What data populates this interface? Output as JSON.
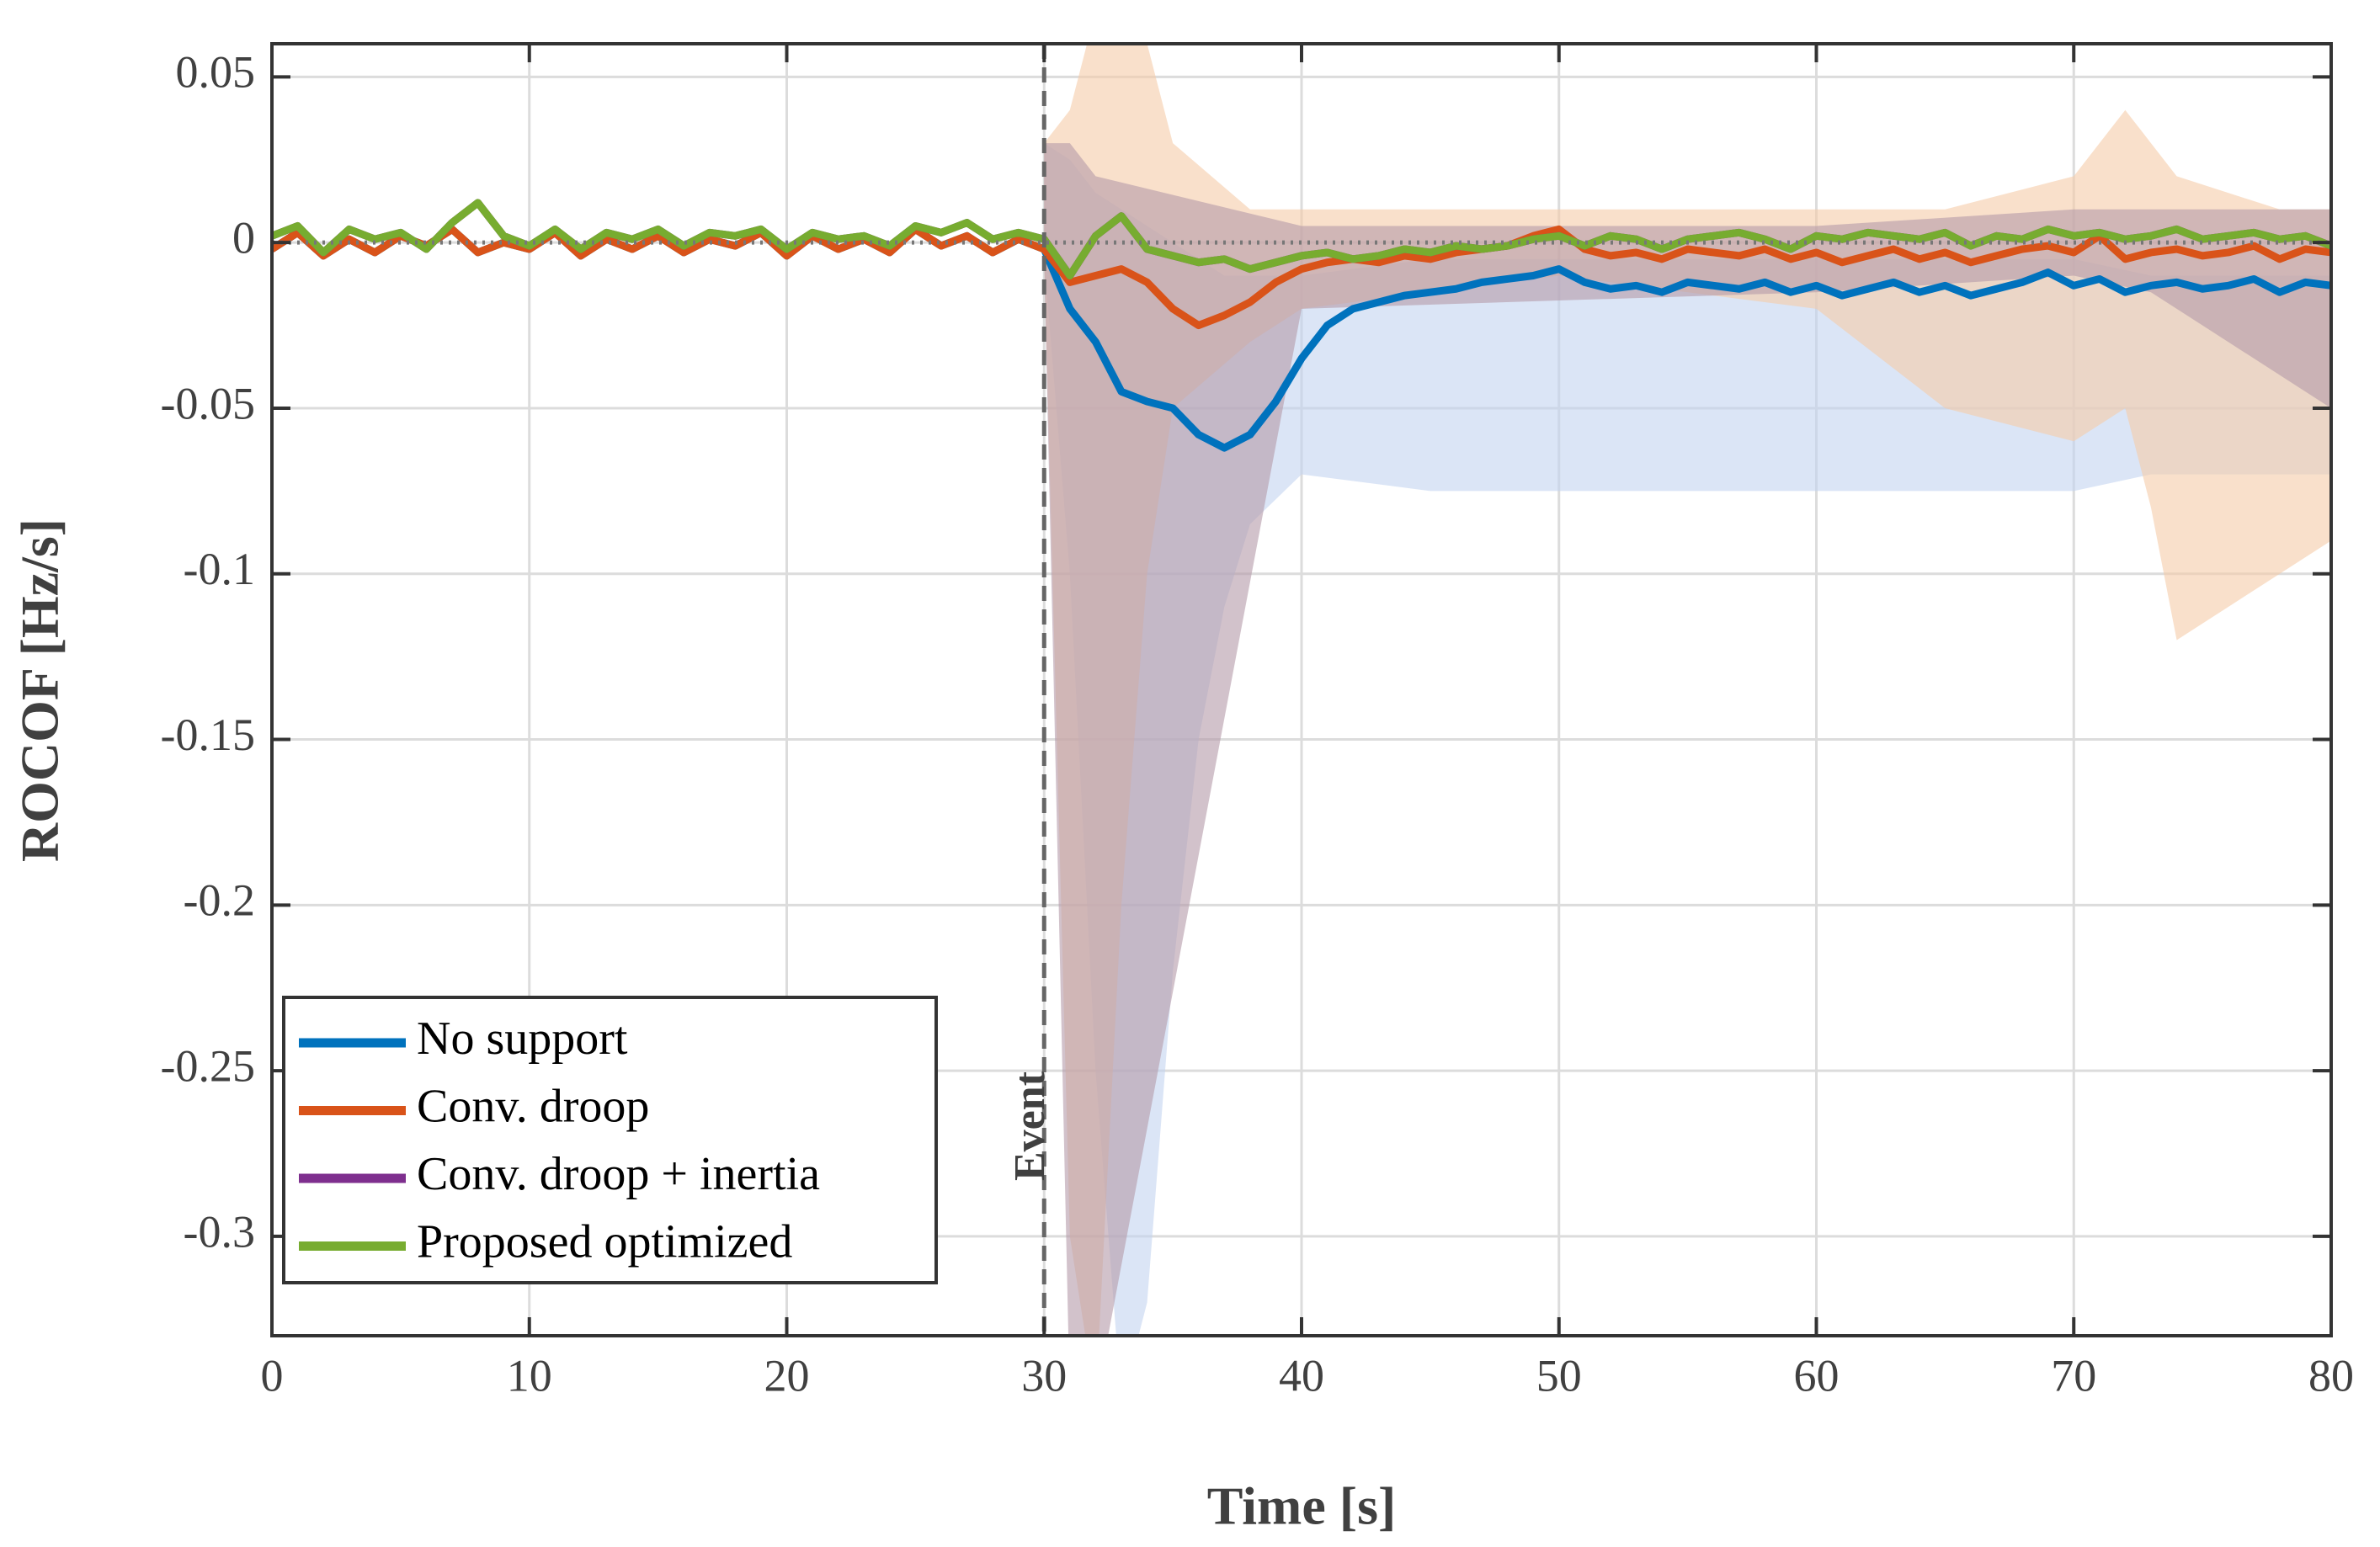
{
  "chart_data": {
    "type": "line",
    "xlabel": "Time [s]",
    "ylabel": "ROCOF [Hz/s]",
    "xlim": [
      0,
      80
    ],
    "xticks": [
      0,
      10,
      20,
      30,
      40,
      50,
      60,
      70,
      80
    ],
    "ylim": [
      -0.33,
      0.06
    ],
    "yticks": [
      0.05,
      0,
      -0.05,
      -0.1,
      -0.15,
      -0.2,
      -0.25,
      -0.3
    ],
    "grid": true,
    "legend": "lower left",
    "hline": 0,
    "event": {
      "x": 30,
      "label": "Event"
    },
    "x": [
      0,
      1,
      2,
      3,
      4,
      5,
      6,
      7,
      8,
      9,
      10,
      11,
      12,
      13,
      14,
      15,
      16,
      17,
      18,
      19,
      20,
      21,
      22,
      23,
      24,
      25,
      26,
      27,
      28,
      29,
      30,
      31,
      32,
      33,
      34,
      35,
      36,
      37,
      38,
      39,
      40,
      41,
      42,
      43,
      44,
      45,
      46,
      47,
      48,
      49,
      50,
      51,
      52,
      53,
      54,
      55,
      56,
      57,
      58,
      59,
      60,
      61,
      62,
      63,
      64,
      65,
      66,
      67,
      68,
      69,
      70,
      71,
      72,
      73,
      74,
      75,
      76,
      77,
      78,
      79,
      80
    ],
    "series": [
      {
        "name": "No support",
        "color": "#0072bd",
        "values": [
          -0.002,
          0.003,
          -0.004,
          0.001,
          -0.003,
          0.002,
          -0.001,
          0.004,
          -0.003,
          0,
          -0.002,
          0.003,
          -0.004,
          0.001,
          -0.002,
          0.002,
          -0.003,
          0.001,
          -0.001,
          0.003,
          -0.004,
          0.002,
          -0.002,
          0.001,
          -0.003,
          0.004,
          -0.001,
          0.002,
          -0.003,
          0.001,
          -0.002,
          -0.02,
          -0.03,
          -0.045,
          -0.048,
          -0.05,
          -0.058,
          -0.062,
          -0.058,
          -0.048,
          -0.035,
          -0.025,
          -0.02,
          -0.018,
          -0.016,
          -0.015,
          -0.014,
          -0.012,
          -0.011,
          -0.01,
          -0.008,
          -0.012,
          -0.014,
          -0.013,
          -0.015,
          -0.012,
          -0.013,
          -0.014,
          -0.012,
          -0.015,
          -0.013,
          -0.016,
          -0.014,
          -0.012,
          -0.015,
          -0.013,
          -0.016,
          -0.014,
          -0.012,
          -0.009,
          -0.013,
          -0.011,
          -0.015,
          -0.013,
          -0.012,
          -0.014,
          -0.013,
          -0.011,
          -0.015,
          -0.012,
          -0.013
        ]
      },
      {
        "name": "Conv. droop",
        "color": "#d95319",
        "values": [
          -0.002,
          0.003,
          -0.004,
          0.001,
          -0.003,
          0.002,
          -0.001,
          0.004,
          -0.003,
          0,
          -0.002,
          0.003,
          -0.004,
          0.001,
          -0.002,
          0.002,
          -0.003,
          0.001,
          -0.001,
          0.003,
          -0.004,
          0.002,
          -0.002,
          0.001,
          -0.003,
          0.004,
          -0.001,
          0.002,
          -0.003,
          0.001,
          -0.002,
          -0.012,
          -0.01,
          -0.008,
          -0.012,
          -0.02,
          -0.025,
          -0.022,
          -0.018,
          -0.012,
          -0.008,
          -0.006,
          -0.005,
          -0.006,
          -0.004,
          -0.005,
          -0.003,
          -0.002,
          -0.001,
          0.002,
          0.004,
          -0.002,
          -0.004,
          -0.003,
          -0.005,
          -0.002,
          -0.003,
          -0.004,
          -0.002,
          -0.005,
          -0.003,
          -0.006,
          -0.004,
          -0.002,
          -0.005,
          -0.003,
          -0.006,
          -0.004,
          -0.002,
          -0.001,
          -0.003,
          0.002,
          -0.005,
          -0.003,
          -0.002,
          -0.004,
          -0.003,
          -0.001,
          -0.005,
          -0.002,
          -0.003
        ]
      },
      {
        "name": "Conv. droop + inertia",
        "color": "#7e2f8e",
        "values": [
          0.002,
          0.005,
          -0.003,
          0.004,
          0.001,
          0.003,
          -0.002,
          0.006,
          0.012,
          0.002,
          -0.001,
          0.004,
          -0.002,
          0.003,
          0.001,
          0.004,
          -0.001,
          0.003,
          0.002,
          0.004,
          -0.002,
          0.003,
          0.001,
          0.002,
          -0.001,
          0.005,
          0.003,
          0.006,
          0.001,
          0.003,
          0.001,
          -0.01,
          0.002,
          0.008,
          -0.002,
          -0.004,
          -0.006,
          -0.005,
          -0.008,
          -0.006,
          -0.004,
          -0.003,
          -0.005,
          -0.004,
          -0.002,
          -0.003,
          -0.001,
          -0.002,
          -0.001,
          0.001,
          0.002,
          -0.001,
          0.002,
          0.001,
          -0.002,
          0.001,
          0.002,
          0.003,
          0.001,
          -0.002,
          0.002,
          0.001,
          0.003,
          0.002,
          0.001,
          0.003,
          -0.001,
          0.002,
          0.001,
          0.004,
          0.002,
          0.003,
          0.001,
          0.002,
          0.004,
          0.001,
          0.002,
          0.003,
          0.001,
          0.002,
          -0.001
        ]
      },
      {
        "name": "Proposed optimized",
        "color": "#77ac30",
        "values": [
          0.002,
          0.005,
          -0.003,
          0.004,
          0.001,
          0.003,
          -0.002,
          0.006,
          0.012,
          0.002,
          -0.001,
          0.004,
          -0.002,
          0.003,
          0.001,
          0.004,
          -0.001,
          0.003,
          0.002,
          0.004,
          -0.002,
          0.003,
          0.001,
          0.002,
          -0.001,
          0.005,
          0.003,
          0.006,
          0.001,
          0.003,
          0.001,
          -0.01,
          0.002,
          0.008,
          -0.002,
          -0.004,
          -0.006,
          -0.005,
          -0.008,
          -0.006,
          -0.004,
          -0.003,
          -0.005,
          -0.004,
          -0.002,
          -0.003,
          -0.001,
          -0.002,
          -0.001,
          0.001,
          0.002,
          -0.001,
          0.002,
          0.001,
          -0.002,
          0.001,
          0.002,
          0.003,
          0.001,
          -0.002,
          0.002,
          0.001,
          0.003,
          0.002,
          0.001,
          0.003,
          -0.001,
          0.002,
          0.001,
          0.004,
          0.002,
          0.003,
          0.001,
          0.002,
          0.004,
          0.001,
          0.002,
          0.003,
          0.001,
          0.002,
          -0.001
        ]
      }
    ],
    "bands": [
      {
        "color": "#c3d3f0",
        "x": [
          30,
          31,
          32,
          33,
          34,
          35,
          36,
          37,
          38,
          40,
          45,
          50,
          60,
          70,
          73,
          80
        ],
        "lower": [
          -0.005,
          -0.1,
          -0.25,
          -0.35,
          -0.32,
          -0.22,
          -0.15,
          -0.11,
          -0.085,
          -0.07,
          -0.075,
          -0.075,
          -0.075,
          -0.075,
          -0.07,
          -0.07
        ],
        "upper": [
          0.03,
          0.025,
          0.015,
          0.01,
          0.005,
          0,
          -0.005,
          -0.01,
          -0.01,
          -0.01,
          -0.005,
          -0.005,
          -0.005,
          -0.005,
          -0.01,
          -0.01
        ]
      },
      {
        "color": "#f5cba8",
        "x": [
          30,
          31,
          32,
          33,
          34,
          35,
          38,
          40,
          50,
          60,
          65,
          70,
          72,
          73,
          74,
          76,
          78,
          80
        ],
        "lower": [
          -0.005,
          -0.3,
          -0.35,
          -0.2,
          -0.1,
          -0.05,
          -0.03,
          -0.02,
          -0.01,
          -0.02,
          -0.05,
          -0.06,
          -0.05,
          -0.08,
          -0.12,
          -0.11,
          -0.1,
          -0.09
        ],
        "upper": [
          0.03,
          0.04,
          0.07,
          0.07,
          0.06,
          0.03,
          0.01,
          0.01,
          0.01,
          0.01,
          0.01,
          0.02,
          0.04,
          0.03,
          0.02,
          0.015,
          0.01,
          0.01
        ]
      },
      {
        "color": "#b49aa8",
        "x": [
          30,
          31,
          32,
          40,
          60,
          70,
          73,
          76,
          80
        ],
        "lower": [
          -0.005,
          -0.35,
          -0.35,
          -0.02,
          -0.015,
          -0.01,
          -0.015,
          -0.03,
          -0.05
        ],
        "upper": [
          0.03,
          0.03,
          0.02,
          0.005,
          0.005,
          0.01,
          0.01,
          0.01,
          0.01
        ]
      }
    ]
  }
}
